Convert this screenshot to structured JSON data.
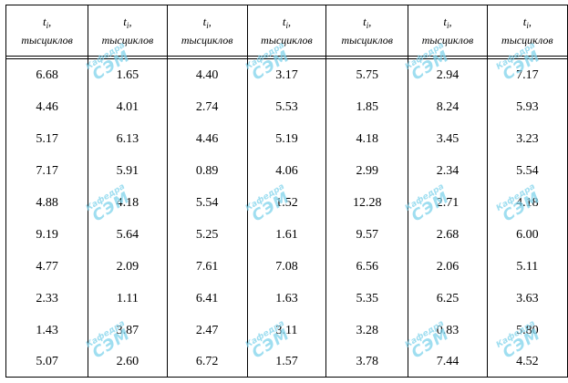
{
  "table": {
    "header": {
      "symbol": "t",
      "subscript": "i",
      "comma": ",",
      "unit": "тысциклов"
    },
    "columns": 7,
    "rows": [
      [
        "6.68",
        "1.65",
        "4.40",
        "3.17",
        "5.75",
        "2.94",
        "7.17"
      ],
      [
        "4.46",
        "4.01",
        "2.74",
        "5.53",
        "1.85",
        "8.24",
        "5.93"
      ],
      [
        "5.17",
        "6.13",
        "4.46",
        "5.19",
        "4.18",
        "3.45",
        "3.23"
      ],
      [
        "7.17",
        "5.91",
        "0.89",
        "4.06",
        "2.99",
        "2.34",
        "5.54"
      ],
      [
        "4.88",
        "4.18",
        "5.54",
        "1.52",
        "12.28",
        "2.71",
        "4.18"
      ],
      [
        "9.19",
        "5.64",
        "5.25",
        "1.61",
        "9.57",
        "2.68",
        "6.00"
      ],
      [
        "4.77",
        "2.09",
        "7.61",
        "7.08",
        "6.56",
        "2.06",
        "5.11"
      ],
      [
        "2.33",
        "1.11",
        "6.41",
        "1.63",
        "5.35",
        "6.25",
        "3.63"
      ],
      [
        "1.43",
        "3.87",
        "2.47",
        "3.11",
        "3.28",
        "0.83",
        "5.80"
      ],
      [
        "5.07",
        "2.60",
        "6.72",
        "1.57",
        "3.78",
        "7.44",
        "4.52"
      ]
    ]
  },
  "watermark": {
    "small": "Кафедра",
    "big": "СЭМ",
    "color": "#7fd3ec"
  }
}
